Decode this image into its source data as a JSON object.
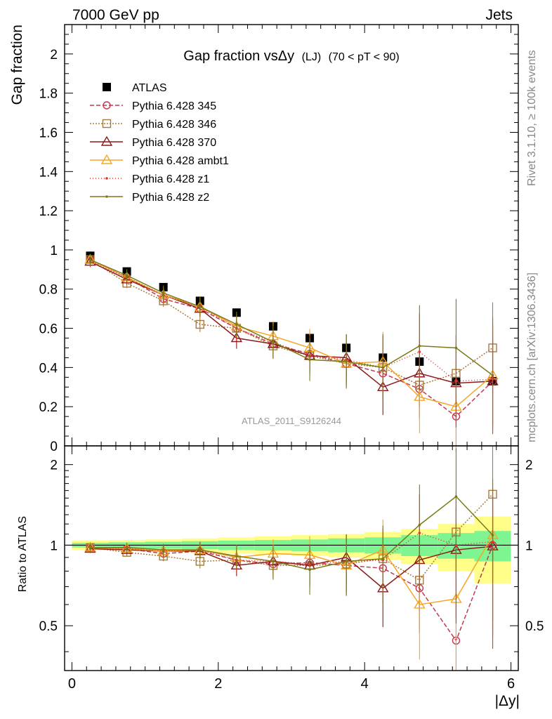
{
  "header": {
    "left": "7000 GeV pp",
    "right": "Jets",
    "side_top": "Rivet 3.1.10, ≥ 100k events",
    "side_bottom": "mcplots.cern.ch [arXiv:1306.3436]"
  },
  "chart_data": [
    {
      "type": "line",
      "title_main": "Gap fraction vsΔy",
      "title_sub": "(LJ)",
      "title_range": "(70 < pT <  90)",
      "ylabel": "Gap fraction",
      "xlabel": "|Δy|",
      "watermark": "ATLAS_2011_S9126244",
      "xlim": [
        -0.1,
        6.1
      ],
      "ylim": [
        0,
        2.15
      ],
      "x_ticks": [
        0,
        2,
        4,
        6
      ],
      "x_tick_labels": [
        "0",
        "2",
        "4",
        "6"
      ],
      "y_ticks": [
        0,
        0.2,
        0.4,
        0.6,
        0.8,
        1,
        1.2,
        1.4,
        1.6,
        1.8,
        2
      ],
      "y_tick_labels": [
        "0",
        "0.2",
        "0.4",
        "0.6",
        "0.8",
        "1",
        "1.2",
        "1.4",
        "1.6",
        "1.8",
        "2"
      ],
      "x": [
        0.25,
        0.75,
        1.25,
        1.75,
        2.25,
        2.75,
        3.25,
        3.75,
        4.25,
        4.75,
        5.25,
        5.75
      ],
      "series": [
        {
          "name": "ATLAS",
          "color": "#000000",
          "marker": "square-filled",
          "dash": "none",
          "values": [
            0.97,
            0.89,
            0.81,
            0.74,
            0.68,
            0.61,
            0.55,
            0.5,
            0.45,
            0.43,
            0.33,
            0.33
          ]
        },
        {
          "name": "Pythia 6.428 345",
          "color": "#c0394f",
          "marker": "circle",
          "dash": "6,3",
          "values": [
            0.95,
            0.86,
            0.75,
            0.7,
            0.6,
            0.52,
            0.47,
            0.42,
            0.37,
            0.29,
            0.15,
            0.33
          ]
        },
        {
          "name": "Pythia 6.428 346",
          "color": "#a57b3c",
          "marker": "square-open",
          "dash": "2,2",
          "values": [
            0.95,
            0.83,
            0.74,
            0.62,
            0.6,
            0.51,
            0.46,
            0.42,
            0.4,
            0.31,
            0.37,
            0.5
          ]
        },
        {
          "name": "Pythia 6.428 370",
          "color": "#8b1a1a",
          "marker": "triangle",
          "dash": "none",
          "values": [
            0.94,
            0.85,
            0.77,
            0.7,
            0.55,
            0.52,
            0.46,
            0.45,
            0.3,
            0.37,
            0.32,
            0.33
          ]
        },
        {
          "name": "Pythia 6.428 ambt1",
          "color": "#f5a623",
          "marker": "triangle",
          "dash": "none",
          "values": [
            0.95,
            0.86,
            0.77,
            0.71,
            0.61,
            0.56,
            0.5,
            0.42,
            0.43,
            0.25,
            0.2,
            0.36
          ]
        },
        {
          "name": "Pythia 6.428 z1",
          "color": "#d9342b",
          "marker": "dot",
          "dash": "1,3",
          "values": [
            0.94,
            0.86,
            0.77,
            0.71,
            0.6,
            0.53,
            0.46,
            0.44,
            0.4,
            0.48,
            0.33,
            0.34
          ]
        },
        {
          "name": "Pythia 6.428 z2",
          "color": "#7a7a18",
          "marker": "dot",
          "dash": "none",
          "values": [
            0.95,
            0.87,
            0.78,
            0.71,
            0.62,
            0.53,
            0.44,
            0.43,
            0.4,
            0.51,
            0.5,
            0.36
          ]
        }
      ]
    },
    {
      "type": "line",
      "ylabel": "Ratio to ATLAS",
      "ylim": [
        0.34,
        2.35
      ],
      "y_ticks": [
        0.5,
        1,
        2
      ],
      "y_tick_labels": [
        "0.5",
        "1",
        "2"
      ],
      "band_x_edges": [
        0,
        0.5,
        1,
        1.5,
        2,
        2.5,
        3,
        3.5,
        4,
        4.5,
        5,
        5.5,
        6
      ],
      "band_inner": [
        0.02,
        0.025,
        0.03,
        0.035,
        0.04,
        0.045,
        0.05,
        0.06,
        0.07,
        0.09,
        0.11,
        0.13
      ],
      "band_outer": [
        0.04,
        0.045,
        0.05,
        0.06,
        0.07,
        0.08,
        0.09,
        0.1,
        0.12,
        0.15,
        0.2,
        0.28
      ],
      "band_colors": {
        "inner": "#7ff592",
        "outer": "#fefe88"
      },
      "x": [
        0.25,
        0.75,
        1.25,
        1.75,
        2.25,
        2.75,
        3.25,
        3.75,
        4.25,
        4.75,
        5.25,
        5.75
      ],
      "series": [
        {
          "name": "Pythia 6.428 345",
          "values": [
            0.98,
            0.97,
            0.93,
            0.95,
            0.88,
            0.85,
            0.86,
            0.84,
            0.82,
            0.69,
            0.44,
            1.0
          ]
        },
        {
          "name": "Pythia 6.428 346",
          "values": [
            0.98,
            0.94,
            0.91,
            0.87,
            0.88,
            0.84,
            0.84,
            0.85,
            0.89,
            0.74,
            1.12,
            1.55
          ]
        },
        {
          "name": "Pythia 6.428 370",
          "values": [
            0.97,
            0.96,
            0.95,
            0.95,
            0.84,
            0.87,
            0.84,
            0.9,
            0.69,
            0.88,
            0.96,
            0.99
          ]
        },
        {
          "name": "Pythia 6.428 ambt1",
          "values": [
            0.98,
            0.97,
            0.95,
            0.96,
            0.9,
            0.93,
            0.92,
            0.84,
            0.96,
            0.6,
            0.63,
            1.09
          ]
        },
        {
          "name": "Pythia 6.428 z1",
          "values": [
            0.97,
            0.97,
            0.95,
            0.96,
            0.88,
            0.87,
            0.85,
            0.87,
            0.88,
            1.11,
            1.0,
            1.03
          ]
        },
        {
          "name": "Pythia 6.428 z2",
          "values": [
            0.98,
            0.98,
            0.96,
            0.96,
            0.91,
            0.87,
            0.81,
            0.87,
            0.89,
            1.19,
            1.52,
            1.09
          ]
        }
      ]
    }
  ]
}
